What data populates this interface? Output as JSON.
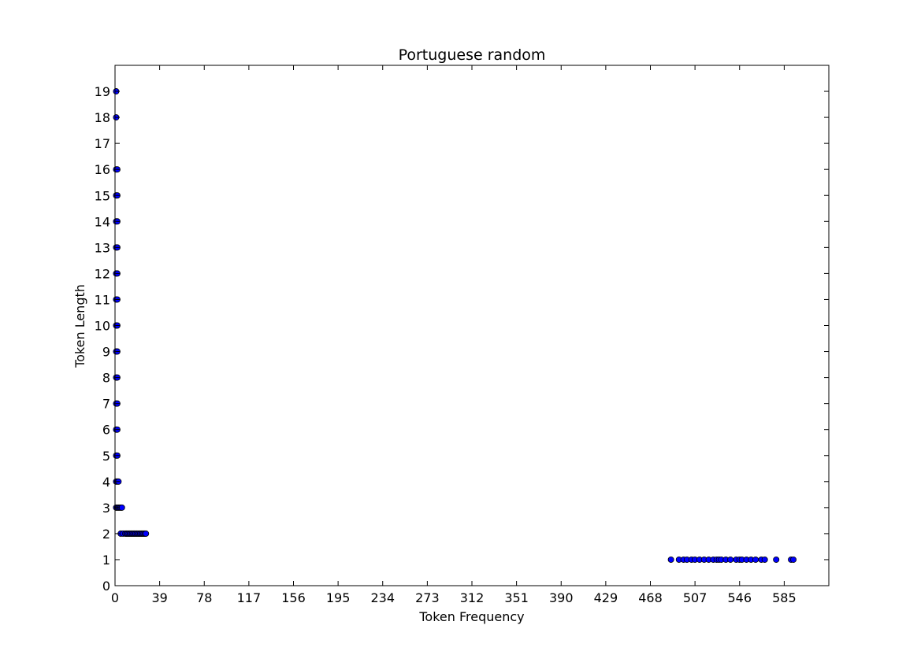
{
  "chart_data": {
    "type": "scatter",
    "title": "Portuguese random",
    "xlabel": "Token Frequency",
    "ylabel": "Token Length",
    "xlim": [
      0,
      624
    ],
    "ylim": [
      0,
      20
    ],
    "x_ticks": [
      0,
      39,
      78,
      117,
      156,
      195,
      234,
      273,
      312,
      351,
      390,
      429,
      468,
      507,
      546,
      585
    ],
    "y_ticks": [
      0,
      1,
      2,
      3,
      4,
      5,
      6,
      7,
      8,
      9,
      10,
      11,
      12,
      13,
      14,
      15,
      16,
      17,
      18,
      19
    ],
    "grid": false,
    "marker_color": "#0000ff",
    "marker_edge_color": "#000000",
    "series": [
      {
        "points": [
          [
            1,
            19
          ],
          [
            1,
            18
          ],
          [
            1,
            16
          ],
          [
            2,
            16
          ],
          [
            1,
            15
          ],
          [
            2,
            15
          ],
          [
            1,
            14
          ],
          [
            2,
            14
          ],
          [
            1,
            13
          ],
          [
            2,
            13
          ],
          [
            1,
            12
          ],
          [
            2,
            12
          ],
          [
            1,
            11
          ],
          [
            2,
            11
          ],
          [
            1,
            10
          ],
          [
            2,
            10
          ],
          [
            1,
            9
          ],
          [
            2,
            9
          ],
          [
            1,
            8
          ],
          [
            2,
            8
          ],
          [
            1,
            7
          ],
          [
            2,
            7
          ],
          [
            1,
            6
          ],
          [
            2,
            6
          ],
          [
            1,
            5
          ],
          [
            2,
            5
          ],
          [
            1,
            4
          ],
          [
            2,
            4
          ],
          [
            3,
            4
          ],
          [
            1,
            3
          ],
          [
            2,
            3
          ],
          [
            3,
            3
          ],
          [
            4,
            3
          ],
          [
            5,
            3
          ],
          [
            6,
            3
          ],
          [
            5,
            2
          ],
          [
            7,
            2
          ],
          [
            9,
            2
          ],
          [
            10,
            2
          ],
          [
            11,
            2
          ],
          [
            12,
            2
          ],
          [
            13,
            2
          ],
          [
            14,
            2
          ],
          [
            15,
            2
          ],
          [
            16,
            2
          ],
          [
            17,
            2
          ],
          [
            18,
            2
          ],
          [
            19,
            2
          ],
          [
            20,
            2
          ],
          [
            21,
            2
          ],
          [
            22,
            2
          ],
          [
            23,
            2
          ],
          [
            24,
            2
          ],
          [
            25,
            2
          ],
          [
            26,
            2
          ],
          [
            27,
            2
          ],
          [
            486,
            1
          ],
          [
            493,
            1
          ],
          [
            497,
            1
          ],
          [
            500,
            1
          ],
          [
            504,
            1
          ],
          [
            507,
            1
          ],
          [
            511,
            1
          ],
          [
            515,
            1
          ],
          [
            519,
            1
          ],
          [
            523,
            1
          ],
          [
            526,
            1
          ],
          [
            528,
            1
          ],
          [
            530,
            1
          ],
          [
            534,
            1
          ],
          [
            538,
            1
          ],
          [
            543,
            1
          ],
          [
            546,
            1
          ],
          [
            548,
            1
          ],
          [
            552,
            1
          ],
          [
            556,
            1
          ],
          [
            560,
            1
          ],
          [
            565,
            1
          ],
          [
            568,
            1
          ],
          [
            578,
            1
          ],
          [
            591,
            1
          ],
          [
            593,
            1
          ]
        ]
      }
    ]
  }
}
